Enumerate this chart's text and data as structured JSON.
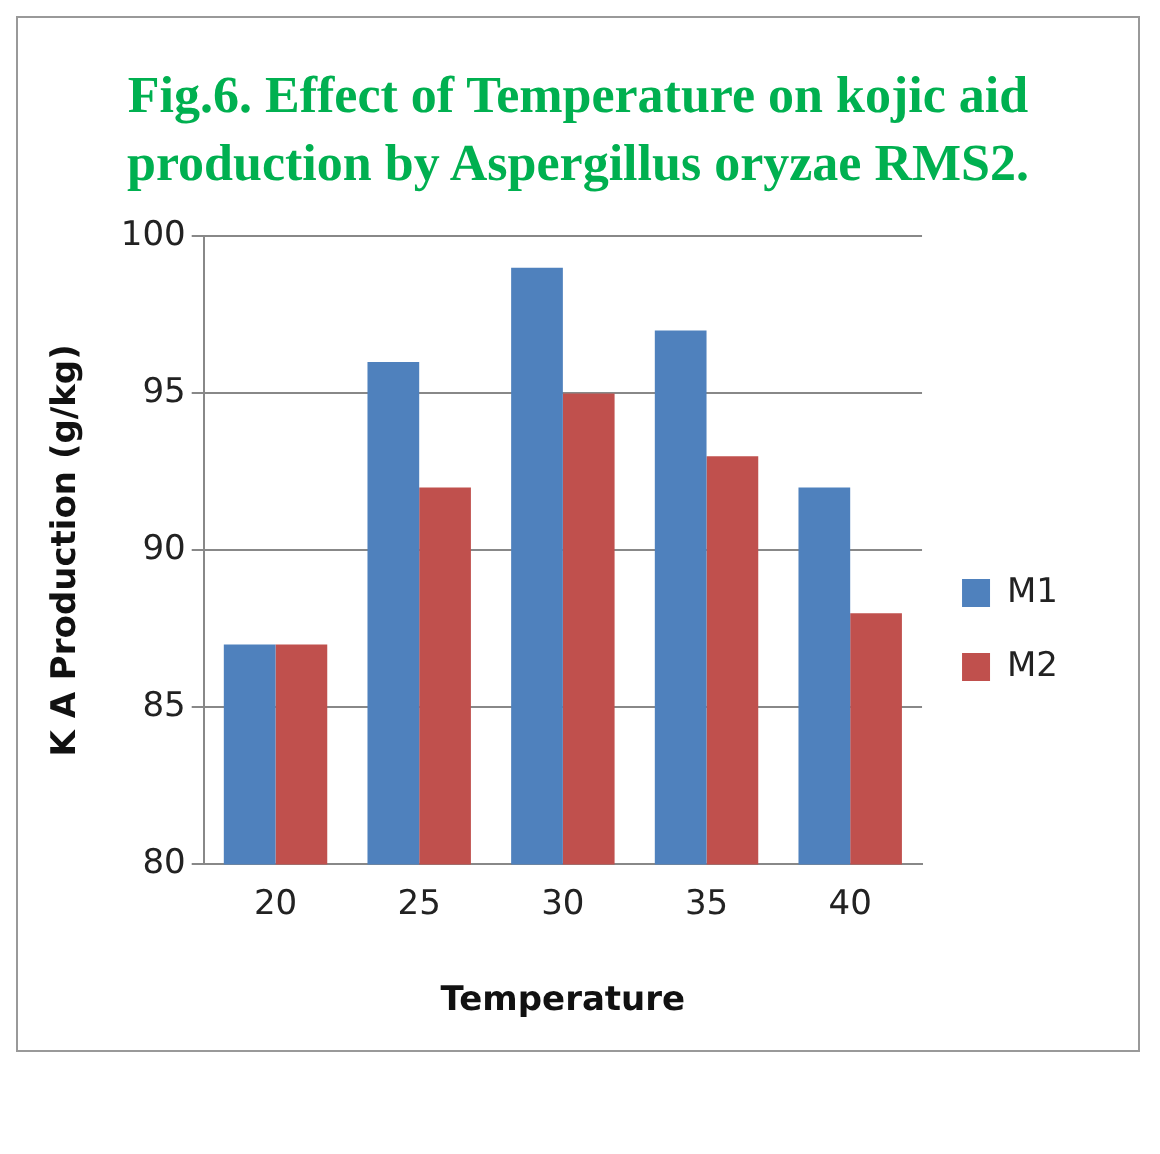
{
  "chart_data": {
    "type": "bar",
    "title": "Fig.6. Effect of Temperature on kojic aid production by Aspergillus oryzae RMS2.",
    "xlabel": "Temperature",
    "ylabel": "K A Production (g/kg)",
    "categories": [
      "20",
      "25",
      "30",
      "35",
      "40"
    ],
    "series": [
      {
        "name": "M1",
        "color": "#4f81bd",
        "values": [
          87,
          96,
          99,
          97,
          92
        ]
      },
      {
        "name": "M2",
        "color": "#c0504d",
        "values": [
          87,
          92,
          95,
          93,
          88
        ]
      }
    ],
    "ylim": [
      80,
      100
    ],
    "yticks": [
      80,
      85,
      90,
      95,
      100
    ],
    "grid": "y",
    "legend": "right"
  }
}
